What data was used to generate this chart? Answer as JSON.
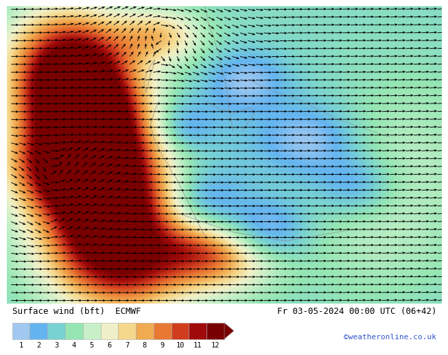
{
  "title_left": "Surface wind (bft)  ECMWF",
  "title_right": "Fr 03-05-2024 00:00 UTC (06+42)",
  "credit": "©weatheronline.co.uk",
  "colorbar_colors": [
    "#a0c8f0",
    "#64b4f0",
    "#78d2d2",
    "#96e6b4",
    "#c8f0c8",
    "#f0f0c8",
    "#f5d88c",
    "#f0aa50",
    "#e87832",
    "#d03c1e",
    "#a00a0a",
    "#780000"
  ],
  "colorbar_labels": [
    "1",
    "2",
    "3",
    "4",
    "5",
    "6",
    "7",
    "8",
    "9",
    "10",
    "11",
    "12"
  ],
  "bg_color": "#ffffff",
  "label_fontsize": 9,
  "credit_fontsize": 8,
  "title_fontsize": 9
}
